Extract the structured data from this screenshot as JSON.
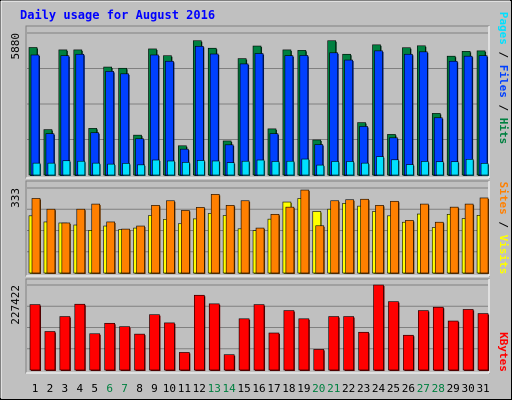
{
  "colors": {
    "background": "#C0C0C0",
    "title": "#0000FF",
    "hits": "#008040",
    "files": "#0040FF",
    "pages": "#00E0FF",
    "visits": "#FFFF00",
    "sites": "#FF8000",
    "kbytes": "#FF0000",
    "weekend": "#008040",
    "weekday": "#000000"
  },
  "chart_data": [
    {
      "type": "bar",
      "title": "Daily usage for August 2016",
      "categories": [
        "1",
        "2",
        "3",
        "4",
        "5",
        "6",
        "7",
        "8",
        "9",
        "10",
        "11",
        "12",
        "13",
        "14",
        "15",
        "16",
        "17",
        "18",
        "19",
        "20",
        "21",
        "22",
        "23",
        "24",
        "25",
        "26",
        "27",
        "28",
        "29",
        "30",
        "31"
      ],
      "weekend_days": [
        "6",
        "7",
        "13",
        "14",
        "20",
        "21",
        "27",
        "28"
      ],
      "ymax_label": "5880",
      "ylim": [
        0,
        5880
      ],
      "ylabel_parts": [
        "Pages",
        "Files",
        "Hits"
      ],
      "series": [
        {
          "name": "Hits",
          "values": [
            5280,
            1880,
            5180,
            5180,
            1930,
            4470,
            4420,
            1650,
            5220,
            4940,
            1210,
            5560,
            5250,
            1410,
            4820,
            5340,
            1910,
            5180,
            5160,
            1450,
            5560,
            5000,
            2170,
            5390,
            1680,
            5270,
            5350,
            2550,
            4920,
            5120,
            5140
          ]
        },
        {
          "name": "Files",
          "values": [
            4970,
            1710,
            4940,
            5000,
            1750,
            4290,
            4190,
            1500,
            4970,
            4710,
            1070,
            5330,
            5010,
            1250,
            4600,
            5030,
            1710,
            4940,
            4950,
            1260,
            5060,
            4760,
            2010,
            5140,
            1540,
            5000,
            5100,
            2370,
            4710,
            4920,
            4940
          ]
        },
        {
          "name": "Pages",
          "values": [
            490,
            490,
            590,
            570,
            490,
            450,
            480,
            420,
            620,
            580,
            520,
            600,
            580,
            510,
            570,
            620,
            560,
            570,
            660,
            410,
            560,
            560,
            490,
            760,
            630,
            430,
            560,
            550,
            550,
            650,
            480
          ]
        }
      ]
    },
    {
      "type": "bar",
      "categories": [
        "1",
        "2",
        "3",
        "4",
        "5",
        "6",
        "7",
        "8",
        "9",
        "10",
        "11",
        "12",
        "13",
        "14",
        "15",
        "16",
        "17",
        "18",
        "19",
        "20",
        "21",
        "22",
        "23",
        "24",
        "25",
        "26",
        "27",
        "28",
        "29",
        "30",
        "31"
      ],
      "ymax_label": "333",
      "ylim": [
        0,
        333
      ],
      "ylabel_parts": [
        "Sites",
        "Visits"
      ],
      "series": [
        {
          "name": "Sites",
          "values": [
            292,
            250,
            196,
            250,
            270,
            200,
            172,
            184,
            265,
            283,
            245,
            257,
            308,
            265,
            283,
            176,
            230,
            258,
            325,
            185,
            283,
            287,
            289,
            265,
            281,
            206,
            270,
            199,
            258,
            270,
            294
          ]
        },
        {
          "name": "Visits",
          "values": [
            224,
            200,
            196,
            188,
            167,
            184,
            170,
            176,
            225,
            210,
            193,
            212,
            233,
            225,
            173,
            166,
            211,
            278,
            292,
            241,
            250,
            273,
            262,
            241,
            224,
            199,
            231,
            178,
            230,
            213,
            226
          ]
        }
      ]
    },
    {
      "type": "bar",
      "categories": [
        "1",
        "2",
        "3",
        "4",
        "5",
        "6",
        "7",
        "8",
        "9",
        "10",
        "11",
        "12",
        "13",
        "14",
        "15",
        "16",
        "17",
        "18",
        "19",
        "20",
        "21",
        "22",
        "23",
        "24",
        "25",
        "26",
        "27",
        "28",
        "29",
        "30",
        "31"
      ],
      "ymax_label": "227422",
      "ylim": [
        0,
        227422
      ],
      "ylabel_parts": [
        "KBytes"
      ],
      "series": [
        {
          "name": "KBytes",
          "values": [
            175000,
            103000,
            143000,
            176000,
            97000,
            125000,
            116000,
            96000,
            148000,
            126000,
            47000,
            200000,
            177000,
            41000,
            137000,
            175000,
            99000,
            159000,
            137000,
            55000,
            143000,
            143000,
            101000,
            227422,
            183000,
            93000,
            159000,
            168000,
            131000,
            162000,
            151000
          ]
        }
      ]
    }
  ]
}
